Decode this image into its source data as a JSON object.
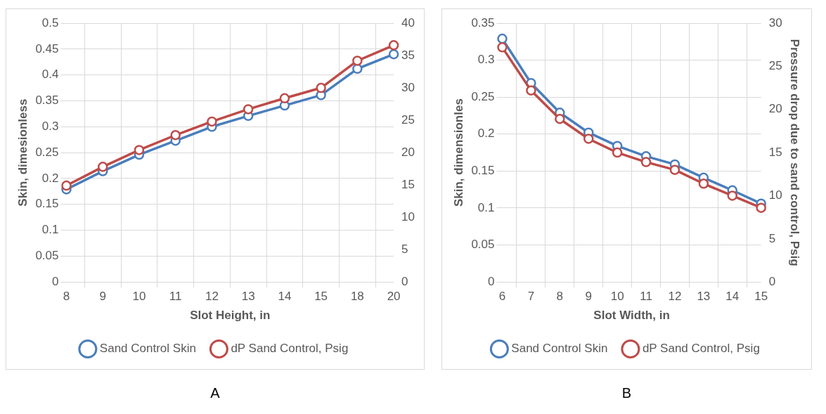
{
  "chart_data": [
    {
      "type": "line",
      "xlabel": "Slot Height, in",
      "ylabel": "Skin, dimesionless",
      "categories": [
        "8",
        "9",
        "10",
        "11",
        "12",
        "13",
        "14",
        "15",
        "18",
        "20"
      ],
      "series": [
        {
          "name": "Sand Control Skin",
          "color": "#4a7ebb",
          "values": [
            0.179,
            0.214,
            0.246,
            0.273,
            0.3,
            0.321,
            0.341,
            0.361,
            0.412,
            0.44
          ]
        },
        {
          "name": "dP Sand Control, Psig",
          "color": "#be4b48",
          "axis": "y2",
          "values": [
            14.9,
            17.8,
            20.4,
            22.7,
            24.8,
            26.7,
            28.4,
            30.0,
            34.2,
            36.6
          ]
        }
      ],
      "ylim": [
        0,
        0.5
      ],
      "yticks": [
        0,
        0.05,
        0.1,
        0.15,
        0.2,
        0.25,
        0.3,
        0.35,
        0.4,
        0.45,
        0.5
      ],
      "y2lim": [
        0,
        40
      ],
      "y2ticks": [
        0,
        5,
        10,
        15,
        20,
        25,
        30,
        35,
        40
      ],
      "grid": true,
      "legend": "bottom",
      "marker": "circle",
      "annotations": [
        "A"
      ]
    },
    {
      "type": "line",
      "xlabel": "Slot Width, in",
      "ylabel": "Skin, dimensionles",
      "y2label": "Pressure drop due to sand control, Psig",
      "categories": [
        "6",
        "7",
        "8",
        "9",
        "10",
        "11",
        "12",
        "13",
        "14",
        "15"
      ],
      "series": [
        {
          "name": "Sand Control Skin",
          "color": "#4a7ebb",
          "values": [
            0.329,
            0.269,
            0.229,
            0.202,
            0.184,
            0.17,
            0.159,
            0.141,
            0.124,
            0.106
          ]
        },
        {
          "name": "dP Sand Control, Psig",
          "color": "#be4b48",
          "axis": "y2",
          "values": [
            27.2,
            22.2,
            18.9,
            16.6,
            15.0,
            13.9,
            13.0,
            11.4,
            10.0,
            8.6
          ]
        }
      ],
      "ylim": [
        0,
        0.35
      ],
      "yticks": [
        0,
        0.05,
        0.1,
        0.15,
        0.2,
        0.25,
        0.3,
        0.35
      ],
      "y2lim": [
        0,
        30
      ],
      "y2ticks": [
        0,
        5,
        10,
        15,
        20,
        25,
        30
      ],
      "grid": true,
      "legend": "bottom",
      "marker": "circle",
      "annotations": [
        "B"
      ]
    }
  ]
}
